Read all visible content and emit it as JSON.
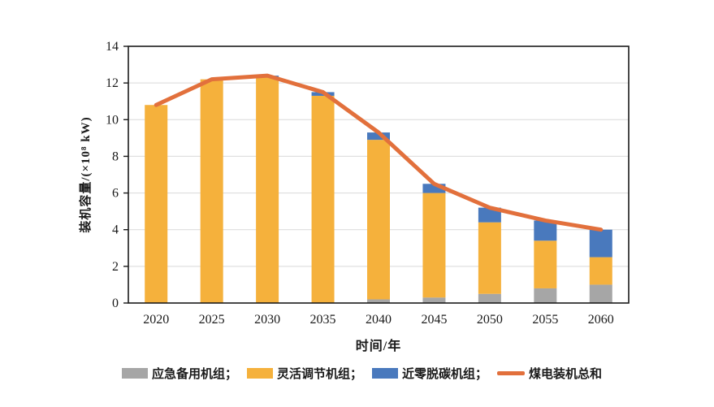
{
  "chart_data": {
    "type": "bar",
    "subtype": "stacked-bars-with-total-line",
    "title": "",
    "xlabel": "时间/年",
    "ylabel": "装机容量/(×10⁸ kW)",
    "categories": [
      "2020",
      "2025",
      "2030",
      "2035",
      "2040",
      "2045",
      "2050",
      "2055",
      "2060"
    ],
    "series": [
      {
        "name": "应急备用机组",
        "color": "#A6A6A6",
        "values": [
          0,
          0,
          0,
          0,
          0.2,
          0.3,
          0.5,
          0.8,
          1.0
        ]
      },
      {
        "name": "灵活调节机组",
        "color": "#F5B13C",
        "values": [
          10.8,
          12.2,
          12.3,
          11.3,
          8.7,
          5.7,
          3.9,
          2.6,
          1.5
        ]
      },
      {
        "name": "近零脱碳机组",
        "color": "#4979BD",
        "values": [
          0,
          0,
          0.1,
          0.2,
          0.4,
          0.5,
          0.8,
          1.1,
          1.5
        ]
      }
    ],
    "line_series": {
      "name": "煤电装机总和",
      "color": "#E2703C",
      "values": [
        10.8,
        12.2,
        12.4,
        11.5,
        9.3,
        6.5,
        5.2,
        4.5,
        4.0
      ]
    },
    "ylim": [
      0,
      14
    ],
    "ytick_step": 2,
    "ytick_labels": [
      "0",
      "2",
      "4",
      "6",
      "8",
      "10",
      "12",
      "14"
    ],
    "grid": true,
    "grid_color": "#D9D9D9",
    "axis_color": "#1A1A1A",
    "text_color": "#1A1A1A",
    "legend_position": "bottom"
  },
  "legend": {
    "items": [
      {
        "label": "应急备用机组；",
        "swatch": "rect",
        "color": "#A6A6A6"
      },
      {
        "label": "灵活调节机组；",
        "swatch": "rect",
        "color": "#F5B13C"
      },
      {
        "label": "近零脱碳机组；",
        "swatch": "rect",
        "color": "#4979BD"
      },
      {
        "label": "煤电装机总和",
        "swatch": "line",
        "color": "#E2703C"
      }
    ]
  }
}
